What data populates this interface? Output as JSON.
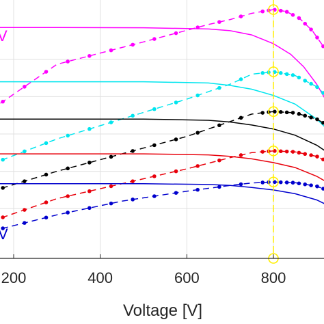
{
  "chart_data": {
    "type": "line",
    "xlabel": "Voltage [V]",
    "ylabel": "",
    "title": "",
    "xlim": [
      150,
      960
    ],
    "ylim": [
      0,
      1
    ],
    "xticks": [
      200,
      400,
      600,
      800
    ],
    "x_tick_labels": [
      "200",
      "400",
      "600",
      "800"
    ],
    "grid": true,
    "marker_line_x": 800,
    "edge_labels": [
      "V",
      "V"
    ],
    "series": [
      {
        "kind": "current",
        "color": "#ff00ff",
        "x": [
          150,
          300,
          500,
          650,
          700,
          750,
          800,
          840,
          870,
          900,
          930,
          950,
          960
        ],
        "y": [
          0.928,
          0.928,
          0.927,
          0.922,
          0.915,
          0.898,
          0.863,
          0.82,
          0.77,
          0.7,
          0.61,
          0.54,
          0.5
        ]
      },
      {
        "kind": "power",
        "color": "#ff00ff",
        "x": [
          150,
          300,
          500,
          650,
          700,
          750,
          800,
          830,
          860,
          890,
          920,
          945,
          960
        ],
        "y": [
          0.6,
          0.78,
          0.87,
          0.94,
          0.96,
          0.985,
          1.0,
          0.992,
          0.965,
          0.915,
          0.84,
          0.75,
          0.69
        ]
      },
      {
        "kind": "current",
        "color": "#00e5ee",
        "x": [
          150,
          500,
          650,
          700,
          750,
          800,
          850,
          900,
          930,
          950,
          960
        ],
        "y": [
          0.71,
          0.71,
          0.705,
          0.695,
          0.68,
          0.655,
          0.62,
          0.56,
          0.51,
          0.47,
          0.45
        ]
      },
      {
        "kind": "power",
        "color": "#00e5ee",
        "x": [
          150,
          300,
          450,
          600,
          700,
          750,
          800,
          850,
          900,
          930,
          950,
          960
        ],
        "y": [
          0.38,
          0.48,
          0.56,
          0.64,
          0.7,
          0.74,
          0.75,
          0.735,
          0.69,
          0.64,
          0.58,
          0.55
        ]
      },
      {
        "kind": "current",
        "color": "#000000",
        "x": [
          150,
          500,
          650,
          700,
          750,
          800,
          850,
          900,
          930,
          950,
          960
        ],
        "y": [
          0.56,
          0.56,
          0.555,
          0.548,
          0.536,
          0.52,
          0.495,
          0.455,
          0.42,
          0.385,
          0.365
        ]
      },
      {
        "kind": "power",
        "color": "#000000",
        "x": [
          150,
          300,
          450,
          600,
          700,
          750,
          800,
          850,
          900,
          930,
          950,
          960
        ],
        "y": [
          0.27,
          0.35,
          0.42,
          0.49,
          0.55,
          0.58,
          0.59,
          0.585,
          0.56,
          0.53,
          0.49,
          0.46
        ]
      },
      {
        "kind": "current",
        "color": "#e8000b",
        "x": [
          150,
          500,
          650,
          700,
          750,
          800,
          850,
          900,
          930,
          950,
          960
        ],
        "y": [
          0.42,
          0.42,
          0.416,
          0.41,
          0.4,
          0.385,
          0.365,
          0.33,
          0.3,
          0.27,
          0.255
        ]
      },
      {
        "kind": "power",
        "color": "#e8000b",
        "x": [
          150,
          300,
          450,
          600,
          700,
          750,
          800,
          850,
          900,
          930,
          950,
          960
        ],
        "y": [
          0.15,
          0.24,
          0.3,
          0.36,
          0.405,
          0.425,
          0.432,
          0.428,
          0.41,
          0.385,
          0.355,
          0.33
        ]
      },
      {
        "kind": "current",
        "color": "#0000cd",
        "x": [
          150,
          500,
          650,
          700,
          750,
          800,
          850,
          900,
          930,
          950,
          960
        ],
        "y": [
          0.3,
          0.3,
          0.297,
          0.293,
          0.285,
          0.275,
          0.26,
          0.235,
          0.21,
          0.19,
          0.175
        ]
      },
      {
        "kind": "power",
        "color": "#0000cd",
        "x": [
          150,
          300,
          450,
          600,
          700,
          750,
          800,
          850,
          900,
          930,
          950,
          960
        ],
        "y": [
          0.11,
          0.175,
          0.23,
          0.27,
          0.293,
          0.303,
          0.307,
          0.304,
          0.29,
          0.27,
          0.25,
          0.235
        ]
      }
    ]
  }
}
